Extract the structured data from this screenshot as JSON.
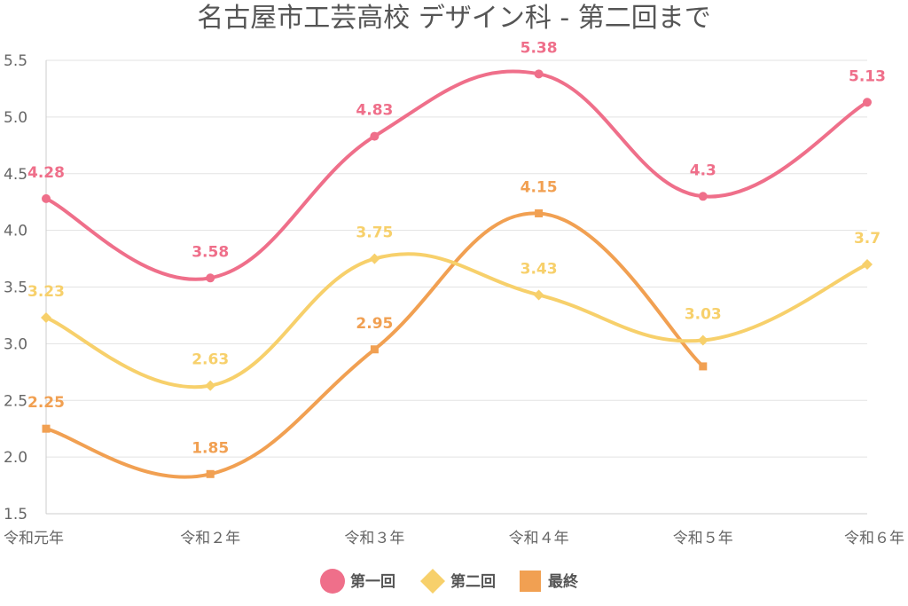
{
  "chart_data": {
    "type": "line",
    "title": "名古屋市工芸高校 デザイン科 - 第二回まで",
    "categories": [
      "令和元年",
      "令和２年",
      "令和３年",
      "令和４年",
      "令和５年",
      "令和６年"
    ],
    "ylim": [
      1.5,
      5.5
    ],
    "yticks": [
      "1.5",
      "2.0",
      "2.5",
      "3.0",
      "3.5",
      "4.0",
      "4.5",
      "5.0",
      "5.5"
    ],
    "grid": true,
    "legend_position": "bottom-center",
    "series": [
      {
        "name": "第一回",
        "color": "#ef6f8a",
        "marker": "circle",
        "values": [
          4.28,
          3.58,
          4.83,
          5.38,
          4.3,
          5.13
        ],
        "labels": [
          "4.28",
          "3.58",
          "4.83",
          "5.38",
          "4.3",
          "5.13"
        ]
      },
      {
        "name": "第二回",
        "color": "#f7d06b",
        "marker": "diamond",
        "values": [
          3.23,
          2.63,
          3.75,
          3.43,
          3.03,
          3.7
        ],
        "labels": [
          "3.23",
          "2.63",
          "3.75",
          "3.43",
          "3.03",
          "3.7"
        ]
      },
      {
        "name": "最終",
        "color": "#f1a052",
        "marker": "square",
        "values": [
          2.25,
          1.85,
          2.95,
          4.15,
          2.8,
          null
        ],
        "labels": [
          "2.25",
          "1.85",
          "2.95",
          "4.15",
          "",
          ""
        ]
      }
    ]
  }
}
